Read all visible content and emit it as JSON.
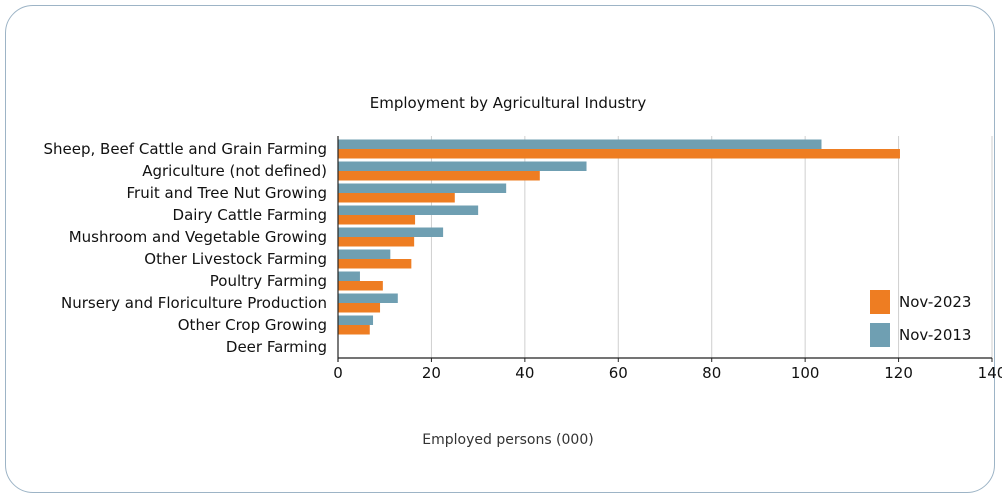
{
  "chart_data": {
    "type": "bar",
    "orientation": "horizontal",
    "title": "Employment by Agricultural Industry",
    "xlabel": "Employed persons (000)",
    "ylabel": "",
    "xlim": [
      0,
      140
    ],
    "xticks": [
      "0",
      "20",
      "40",
      "60",
      "80",
      "100",
      "120",
      "140"
    ],
    "grid": true,
    "legend_position": "right",
    "categories": [
      "Sheep, Beef Cattle and Grain Farming",
      "Agriculture (not defined)",
      "Fruit and Tree Nut Growing",
      "Dairy Cattle Farming",
      "Mushroom and Vegetable Growing",
      "Other Livestock Farming",
      "Poultry Farming",
      "Nursery and Floriculture Production",
      "Other Crop Growing",
      "Deer Farming"
    ],
    "series": [
      {
        "name": "Nov-2013",
        "color": "#6f9fb2",
        "values": [
          103.5,
          53.2,
          36,
          30,
          22.5,
          11.2,
          4.7,
          12.8,
          7.5,
          0
        ]
      },
      {
        "name": "Nov-2023",
        "color": "#ee7d22",
        "values": [
          120.3,
          43.2,
          25,
          16.5,
          16.3,
          15.7,
          9.6,
          9,
          6.8,
          0
        ]
      }
    ],
    "legend": [
      {
        "name": "Nov-2023",
        "color": "#ee7d22"
      },
      {
        "name": "Nov-2013",
        "color": "#6f9fb2"
      }
    ]
  }
}
